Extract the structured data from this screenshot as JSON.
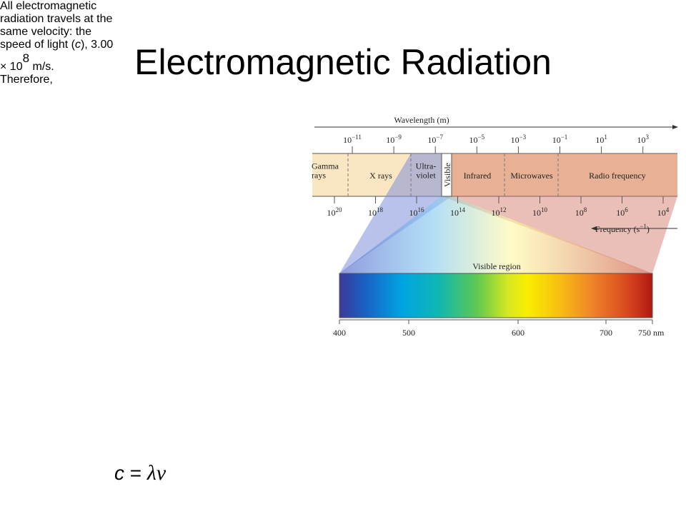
{
  "title": "Electromagnetic Radiation",
  "bullets": [
    {
      "lines": [
        [
          {
            "text": "All electromagnetic"
          }
        ],
        [
          {
            "text": "radiation travels at the"
          }
        ],
        [
          {
            "text": "same velocity:  the"
          }
        ],
        [
          {
            "text": "speed of light ("
          },
          {
            "text": "c",
            "style": "italic"
          },
          {
            "text": "), 3.00"
          }
        ],
        [
          {
            "text": "× 10"
          },
          {
            "text": "8",
            "style": "sup"
          },
          {
            "text": " m/s."
          }
        ]
      ]
    },
    {
      "lines": [
        [
          {
            "text": "Therefore,"
          }
        ]
      ]
    }
  ],
  "equation": [
    {
      "text": "c",
      "style": "italic"
    },
    {
      "text": " = "
    },
    {
      "text": "λν",
      "style": "greek"
    }
  ],
  "diagram": {
    "wavelength_label": "Wavelength (m)",
    "wavelength_ticks": [
      {
        "base": "10",
        "exp": "−11"
      },
      {
        "base": "10",
        "exp": "−9"
      },
      {
        "base": "10",
        "exp": "−7"
      },
      {
        "base": "10",
        "exp": "−5"
      },
      {
        "base": "10",
        "exp": "−3"
      },
      {
        "base": "10",
        "exp": "−1"
      },
      {
        "base": "10",
        "exp": "1"
      },
      {
        "base": "10",
        "exp": "3"
      }
    ],
    "regions": [
      [
        "Gamma",
        "rays"
      ],
      [
        "X rays"
      ],
      [
        "Ultra-",
        "violet"
      ],
      [
        "Visible"
      ],
      [
        "Infrared"
      ],
      [
        "Microwaves"
      ],
      [
        "Radio frequency"
      ]
    ],
    "frequency_ticks": [
      {
        "base": "10",
        "exp": "20"
      },
      {
        "base": "10",
        "exp": "18"
      },
      {
        "base": "10",
        "exp": "16"
      },
      {
        "base": "10",
        "exp": "14"
      },
      {
        "base": "10",
        "exp": "12"
      },
      {
        "base": "10",
        "exp": "10"
      },
      {
        "base": "10",
        "exp": "8"
      },
      {
        "base": "10",
        "exp": "6"
      },
      {
        "base": "10",
        "exp": "4"
      }
    ],
    "frequency_label": {
      "base": "Frequency (s",
      "exp": "−1",
      "end": ")"
    },
    "visible_label": "Visible region",
    "nm_ticks": [
      "400",
      "500",
      "600",
      "700",
      "750 nm"
    ]
  }
}
